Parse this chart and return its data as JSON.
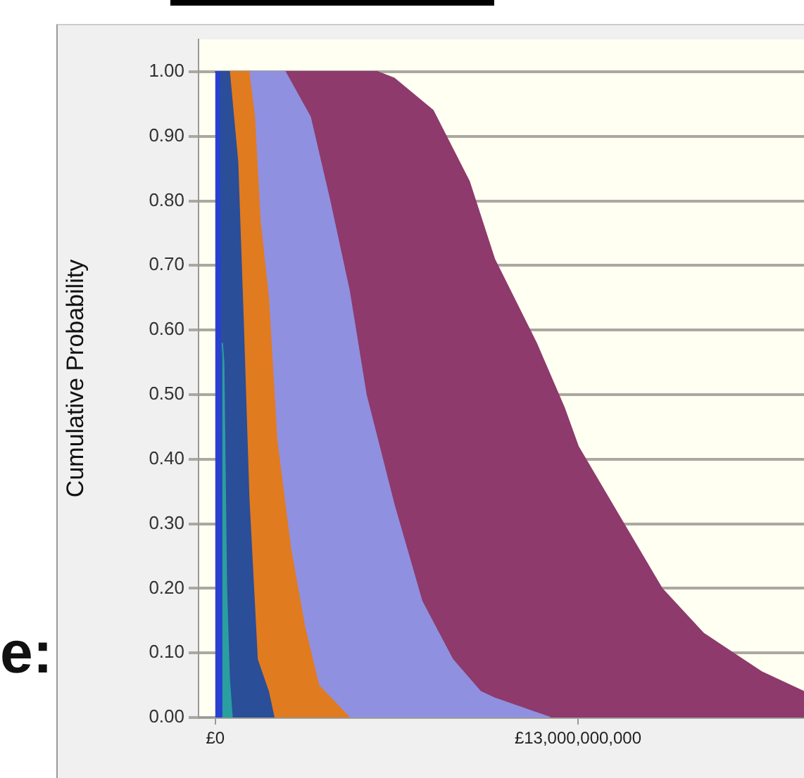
{
  "chart_data": {
    "type": "area",
    "ylabel": "Cumulative Probability",
    "annotations": [
      "e:"
    ],
    "xlim": [
      -600000000,
      21100000000
    ],
    "xticks": [
      {
        "value": 0,
        "label": "£0"
      },
      {
        "value": 13000000000,
        "label": "£13,000,000,000"
      }
    ],
    "ylim": [
      0,
      1.05
    ],
    "yticks": [
      {
        "value": 0,
        "label": "0.00"
      },
      {
        "value": 0.1,
        "label": "0.10"
      },
      {
        "value": 0.2,
        "label": "0.20"
      },
      {
        "value": 0.3,
        "label": "0.30"
      },
      {
        "value": 0.4,
        "label": "0.40"
      },
      {
        "value": 0.5,
        "label": "0.50"
      },
      {
        "value": 0.6,
        "label": "0.60"
      },
      {
        "value": 0.7,
        "label": "0.70"
      },
      {
        "value": 0.8,
        "label": "0.80"
      },
      {
        "value": 0.9,
        "label": "0.90"
      },
      {
        "value": 1,
        "label": "1.00"
      }
    ],
    "grid": "y",
    "legend": false,
    "series": [
      {
        "color": "#8e3a6c",
        "x": [
          0,
          2500000000,
          5800000000,
          6400000000,
          7800000000,
          9100000000,
          10000000000,
          11500000000,
          12500000000,
          13000000000,
          14500000000,
          16000000000,
          17500000000,
          19600000000,
          21100000000
        ],
        "values": [
          1,
          1,
          1,
          0.99,
          0.94,
          0.83,
          0.71,
          0.58,
          0.48,
          0.42,
          0.31,
          0.2,
          0.13,
          0.07,
          0.04
        ]
      },
      {
        "color": "#9090e0",
        "x": [
          0,
          2500000000,
          3400000000,
          4100000000,
          4800000000,
          5400000000,
          6400000000,
          7400000000,
          8500000000,
          9500000000,
          10000000000,
          12000000000
        ],
        "values": [
          1,
          1,
          0.93,
          0.8,
          0.66,
          0.5,
          0.33,
          0.18,
          0.09,
          0.04,
          0.03,
          0
        ]
      },
      {
        "color": "#e07b20",
        "x": [
          0,
          1200000000,
          1400000000,
          1600000000,
          1900000000,
          2200000000,
          2700000000,
          3200000000,
          3700000000,
          4800000000
        ],
        "values": [
          1,
          1,
          0.93,
          0.77,
          0.65,
          0.43,
          0.26,
          0.14,
          0.05,
          0
        ]
      },
      {
        "color": "#2b4e98",
        "x": [
          0,
          500000000,
          800000000,
          1000000000,
          1200000000,
          1500000000,
          1900000000,
          2100000000
        ],
        "values": [
          1,
          1,
          0.86,
          0.61,
          0.34,
          0.09,
          0.04,
          0
        ]
      },
      {
        "color": "#2a40d0",
        "x": [
          0,
          150000000,
          200000000,
          240000000
        ],
        "values": [
          1,
          1,
          0.3,
          0
        ]
      },
      {
        "color": "#2a9fa0",
        "x": [
          250000000,
          300000000,
          400000000,
          500000000,
          600000000
        ],
        "values": [
          0.58,
          0.55,
          0.2,
          0.06,
          0
        ]
      }
    ]
  }
}
